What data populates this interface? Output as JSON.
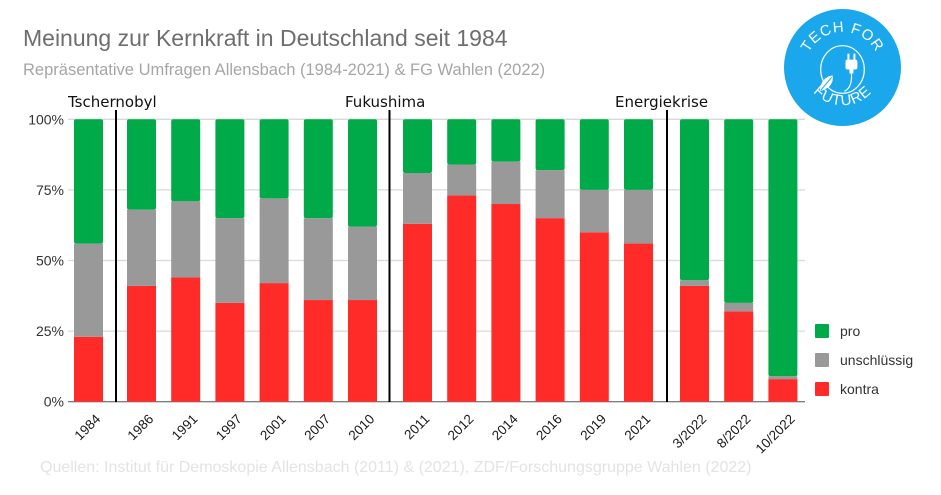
{
  "header": {
    "title": "Meinung zur Kernkraft in Deutschland seit 1984",
    "subtitle": "Repräsentative Umfragen Allensbach (1984-2021) & FG Wahlen (2022)"
  },
  "footer": {
    "source": "Quellen: Institut für Demoskopie Allensbach (2011) & (2021), ZDF/Forschungsgruppe Wahlen (2022)"
  },
  "logo": {
    "text_top": "TECH FOR",
    "text_bottom": "FUTURE",
    "icon": "plug-leaf-icon",
    "color": "#1aa7ec"
  },
  "chart_data": {
    "type": "bar",
    "stacked": true,
    "title": "Meinung zur Kernkraft in Deutschland seit 1984",
    "subtitle": "Repräsentative Umfragen Allensbach (1984-2021) & FG Wahlen (2022)",
    "xlabel": "",
    "ylabel": "",
    "ylim": [
      0,
      100
    ],
    "yticks": [
      "0%",
      "25%",
      "50%",
      "75%",
      "100%"
    ],
    "ytick_values": [
      0,
      25,
      50,
      75,
      100
    ],
    "grid": true,
    "legend_position": "right-bottom",
    "categories": [
      "1984",
      "1986",
      "1991",
      "1997",
      "2001",
      "2007",
      "2010",
      "2011",
      "2012",
      "2014",
      "2016",
      "2019",
      "2021",
      "3/2022",
      "8/2022",
      "10/2022"
    ],
    "series": [
      {
        "name": "kontra",
        "color": "#ff2b28",
        "values": [
          23,
          41,
          44,
          35,
          42,
          36,
          36,
          63,
          73,
          70,
          65,
          60,
          56,
          41,
          32,
          8
        ]
      },
      {
        "name": "unschlüssig",
        "color": "#999999",
        "values": [
          33,
          27,
          27,
          30,
          30,
          29,
          26,
          18,
          11,
          15,
          17,
          15,
          19,
          2,
          3,
          1
        ]
      },
      {
        "name": "pro",
        "color": "#00aa48",
        "values": [
          44,
          32,
          29,
          35,
          28,
          35,
          38,
          19,
          16,
          15,
          18,
          25,
          25,
          57,
          65,
          91
        ]
      }
    ],
    "legend": [
      "pro",
      "unschlüssig",
      "kontra"
    ],
    "annotations": [
      {
        "label": "Tschernobyl",
        "after_category": "1984"
      },
      {
        "label": "Fukushima",
        "after_category": "2010"
      },
      {
        "label": "Energiekrise",
        "after_category": "2021"
      }
    ]
  }
}
